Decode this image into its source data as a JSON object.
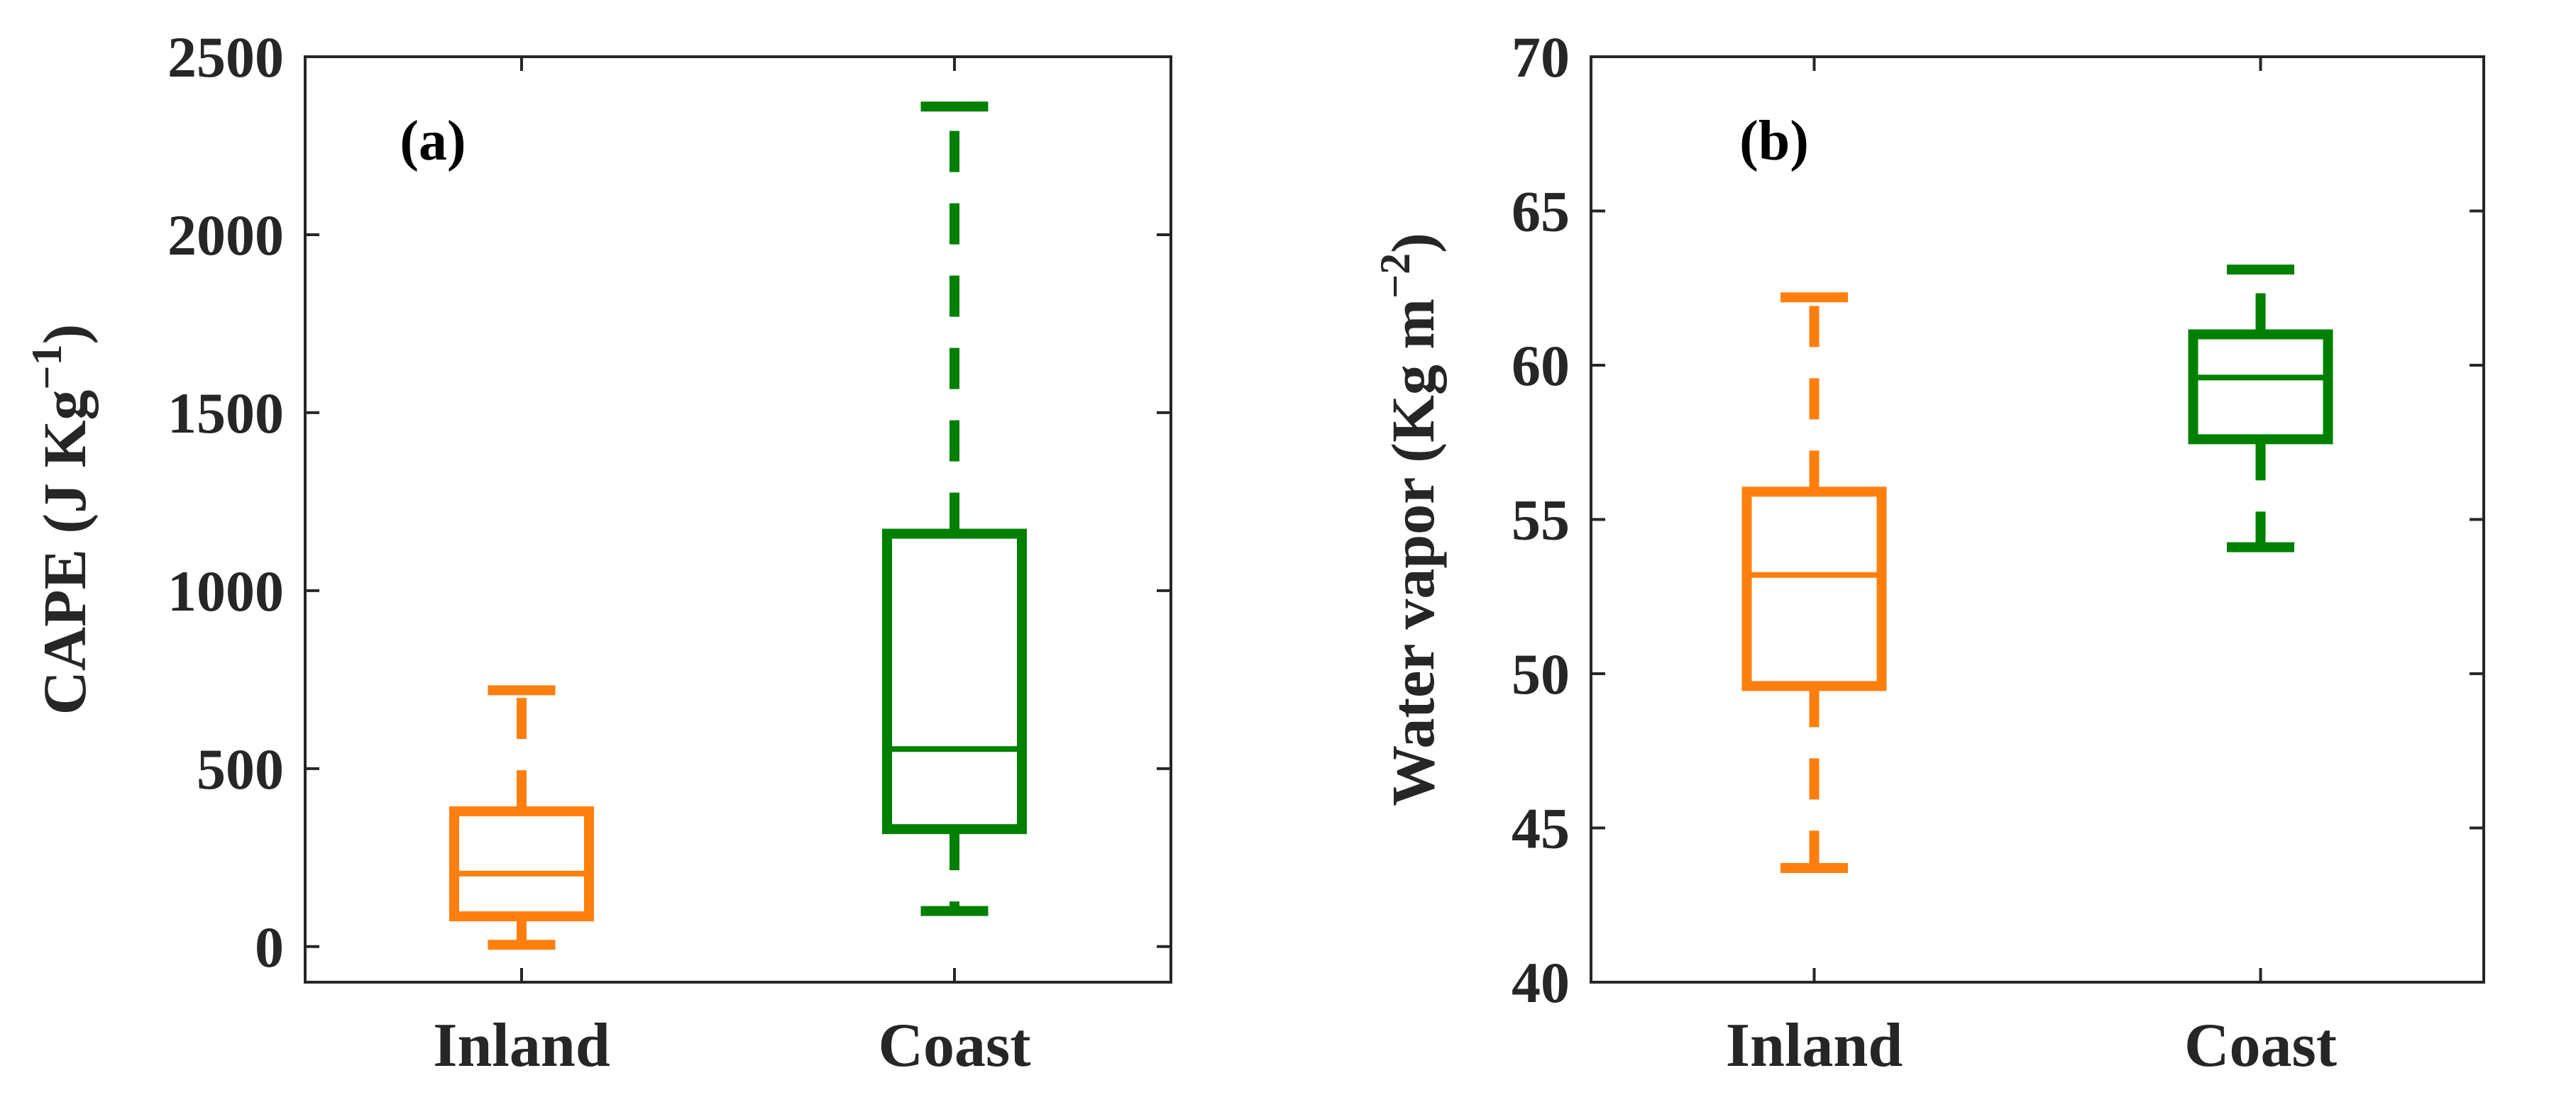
{
  "colors": {
    "inland": "#ff7f0e",
    "coast": "#008000",
    "axis": "#262626"
  },
  "chart_data": [
    {
      "type": "box",
      "panel_label": "(a)",
      "title": "",
      "xlabel": "",
      "ylabel": "CAPE (J Kg",
      "ylabel_sup": "−1",
      "ylabel_end": ")",
      "ylim": [
        -100,
        2500
      ],
      "yticks": [
        0,
        500,
        1000,
        1500,
        2000,
        2500
      ],
      "ytick_labels": [
        "0",
        "500",
        "1000",
        "1500",
        "2000",
        "2500"
      ],
      "categories": [
        "Inland",
        "Coast"
      ],
      "series": [
        {
          "name": "Inland",
          "color": "#ff7f0e",
          "whisker_low": 5,
          "q1": 85,
          "median": 205,
          "q3": 380,
          "whisker_high": 720
        },
        {
          "name": "Coast",
          "color": "#008000",
          "whisker_low": 100,
          "q1": 330,
          "median": 555,
          "q3": 1160,
          "whisker_high": 2360
        }
      ]
    },
    {
      "type": "box",
      "panel_label": "(b)",
      "title": "",
      "xlabel": "",
      "ylabel": "Water vapor (Kg m",
      "ylabel_sup": "−2",
      "ylabel_end": ")",
      "ylim": [
        40,
        70
      ],
      "yticks": [
        40,
        45,
        50,
        55,
        60,
        65,
        70
      ],
      "ytick_labels": [
        "40",
        "45",
        "50",
        "55",
        "60",
        "65",
        "70"
      ],
      "categories": [
        "Inland",
        "Coast"
      ],
      "series": [
        {
          "name": "Inland",
          "color": "#ff7f0e",
          "whisker_low": 43.7,
          "q1": 49.6,
          "median": 53.2,
          "q3": 55.9,
          "whisker_high": 62.2
        },
        {
          "name": "Coast",
          "color": "#008000",
          "whisker_low": 54.1,
          "q1": 57.6,
          "median": 59.6,
          "q3": 61.0,
          "whisker_high": 63.1
        }
      ]
    }
  ]
}
